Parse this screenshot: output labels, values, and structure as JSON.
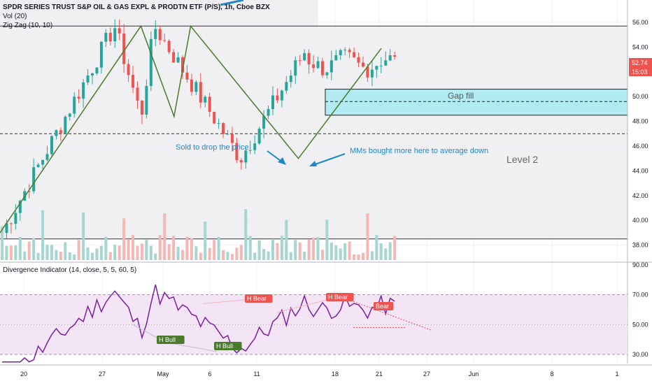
{
  "chart_data": {
    "type": "candlestick",
    "title": "SPDR SERIES TRUST S&P OIL & GAS EXPL & PRODTN ETF (P/S), 1h, Cboe BZX",
    "indicators": [
      "Vol (20)",
      "Zig Zag (10, 10)"
    ],
    "price_axis": {
      "ticks": [
        "56.00",
        "54.00",
        "52.00",
        "50.00",
        "48.00",
        "46.00",
        "44.00",
        "42.00",
        "40.00",
        "38.00"
      ],
      "range": [
        37.0,
        57.0
      ]
    },
    "last_price": "52.74",
    "countdown": "15:03",
    "x_ticks": [
      "20",
      "27",
      "May",
      "6",
      "11",
      "18",
      "21",
      "27",
      "Jun",
      "8",
      "1"
    ],
    "zigzag_points": [
      [
        0,
        39.0
      ],
      [
        17,
        55.7
      ],
      [
        21,
        48.4
      ],
      [
        23,
        55.7
      ],
      [
        36,
        45.0
      ],
      [
        46,
        53.9
      ]
    ],
    "horizontal_levels": [
      {
        "value": 55.7,
        "style": "solid"
      },
      {
        "value": 38.5,
        "style": "solid"
      },
      {
        "value": 47.0,
        "style": "dashed"
      }
    ],
    "gap_zone": {
      "label": "Gap fill",
      "top": 50.6,
      "bottom": 48.5,
      "mid": 49.6
    },
    "annotations": [
      {
        "text": "Sold to drop the price"
      },
      {
        "text": "MMs bought more here to average down"
      },
      {
        "text": "Level 2"
      }
    ],
    "oscillator": {
      "title": "Divergence Indicator (14, close, 5, 5, 60, 5)",
      "ticks": [
        "90.00",
        "70.00",
        "50.00",
        "30.00"
      ],
      "range": [
        20,
        92
      ],
      "band": [
        30,
        70
      ],
      "labels": [
        "H Bull",
        "H Bull",
        "H Bear",
        "H Bear",
        "Bear"
      ]
    },
    "colors": {
      "up": "#26a69a",
      "down": "#ef5350",
      "zigzag": "#4a7a2b",
      "oscillator": "#7b1fa2",
      "band": "#f3e5f5",
      "gap": "#b2ebf2",
      "annotation": "#1e88c7"
    }
  }
}
